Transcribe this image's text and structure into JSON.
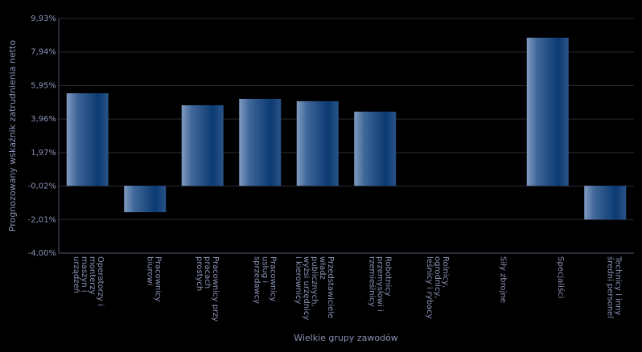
{
  "chart_data": {
    "type": "bar",
    "x_label": "Wielkie grupy zawodów",
    "y_label": "Prognozowany wskaźnik zatrudnienia netto",
    "categories": [
      "Operatorzy i monterzy maszyn i urządzeń",
      "Pracownicy biurowi",
      "Pracownicy przy pracach prostych",
      "Pracownicy usług i sprzedawcy",
      "Przedstawiciele władz publicznych, wyżsi urzędnicy i kierownicy",
      "Robotnicy przemysłowi i rzemieślnicy",
      "Rolnicy, ogrodnicy, leśnicy i rybacy",
      "Siły zbrojne",
      "Specjaliści",
      "Technicy i inny średni personel"
    ],
    "values": [
      5.49,
      -1.57,
      4.78,
      5.16,
      5.02,
      4.4,
      0,
      0,
      8.79,
      -2.0
    ],
    "color": "#0b3a72",
    "ylim": [
      -4.0,
      9.93
    ],
    "yticks": [
      {
        "value": -4.0,
        "label": "-4,00%"
      },
      {
        "value": -2.01,
        "label": "-2,01%"
      },
      {
        "value": -0.02,
        "label": "-0,02%"
      },
      {
        "value": 1.97,
        "label": "1,97%"
      },
      {
        "value": 3.96,
        "label": "3,96%"
      },
      {
        "value": 5.95,
        "label": "5,95%"
      },
      {
        "value": 7.94,
        "label": "7,94%"
      },
      {
        "value": 9.93,
        "label": "9,93%"
      }
    ],
    "grid": true
  }
}
